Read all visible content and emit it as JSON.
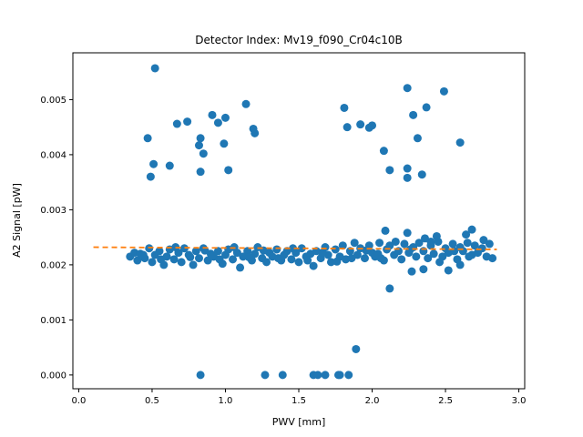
{
  "chart_data": {
    "type": "scatter",
    "title": "Detector Index: Mv19_f090_Cr04c10B",
    "xlabel": "PWV [mm]",
    "ylabel": "A2 Signal [pW]",
    "xlim": [
      -0.04,
      3.04
    ],
    "ylim": [
      -0.00025,
      0.00585
    ],
    "xticks": [
      0.0,
      0.5,
      1.0,
      1.5,
      2.0,
      2.5,
      3.0
    ],
    "xtick_labels": [
      "0.0",
      "0.5",
      "1.0",
      "1.5",
      "2.0",
      "2.5",
      "3.0"
    ],
    "yticks": [
      0.0,
      0.001,
      0.002,
      0.003,
      0.004,
      0.005
    ],
    "ytick_labels": [
      "0.000",
      "0.001",
      "0.002",
      "0.003",
      "0.004",
      "0.005"
    ],
    "colors": {
      "scatter": "#1f77b4",
      "fit": "#ff7f0e"
    },
    "series": [
      {
        "name": "measurements",
        "kind": "points",
        "points": [
          [
            0.35,
            0.00215
          ],
          [
            0.38,
            0.00222
          ],
          [
            0.4,
            0.00208
          ],
          [
            0.42,
            0.0022
          ],
          [
            0.45,
            0.00212
          ],
          [
            0.48,
            0.0023
          ],
          [
            0.5,
            0.00205
          ],
          [
            0.52,
            0.00218
          ],
          [
            0.55,
            0.00225
          ],
          [
            0.58,
            0.002
          ],
          [
            0.6,
            0.00215
          ],
          [
            0.62,
            0.00228
          ],
          [
            0.65,
            0.0021
          ],
          [
            0.68,
            0.00222
          ],
          [
            0.7,
            0.00205
          ],
          [
            0.72,
            0.0023
          ],
          [
            0.75,
            0.00218
          ],
          [
            0.78,
            0.002
          ],
          [
            0.8,
            0.00225
          ],
          [
            0.82,
            0.00212
          ],
          [
            0.85,
            0.0023
          ],
          [
            0.88,
            0.00208
          ],
          [
            0.9,
            0.0022
          ],
          [
            0.92,
            0.00215
          ],
          [
            0.95,
            0.00225
          ],
          [
            0.98,
            0.00202
          ],
          [
            1.0,
            0.00218
          ],
          [
            1.02,
            0.00228
          ],
          [
            1.05,
            0.0021
          ],
          [
            1.08,
            0.00222
          ],
          [
            1.1,
            0.00195
          ],
          [
            1.12,
            0.00215
          ],
          [
            1.15,
            0.00225
          ],
          [
            1.18,
            0.00208
          ],
          [
            1.2,
            0.0022
          ],
          [
            1.22,
            0.00232
          ],
          [
            1.25,
            0.00212
          ],
          [
            1.28,
            0.00205
          ],
          [
            1.3,
            0.00222
          ],
          [
            1.32,
            0.00215
          ],
          [
            1.35,
            0.00228
          ],
          [
            1.38,
            0.00208
          ],
          [
            1.4,
            0.00218
          ],
          [
            1.42,
            0.00225
          ],
          [
            1.45,
            0.0021
          ],
          [
            1.48,
            0.00222
          ],
          [
            1.5,
            0.00205
          ],
          [
            1.52,
            0.0023
          ],
          [
            1.55,
            0.00215
          ],
          [
            1.58,
            0.0022
          ],
          [
            1.6,
            0.00198
          ],
          [
            1.62,
            0.00225
          ],
          [
            1.65,
            0.00212
          ],
          [
            1.68,
            0.00232
          ],
          [
            1.7,
            0.00218
          ],
          [
            1.72,
            0.00205
          ],
          [
            1.75,
            0.00228
          ],
          [
            1.78,
            0.00215
          ],
          [
            1.8,
            0.00235
          ],
          [
            1.82,
            0.0021
          ],
          [
            1.85,
            0.00225
          ],
          [
            1.88,
            0.0024
          ],
          [
            1.9,
            0.00218
          ],
          [
            1.92,
            0.0023
          ],
          [
            1.95,
            0.00212
          ],
          [
            1.98,
            0.00235
          ],
          [
            2.0,
            0.00222
          ],
          [
            2.02,
            0.00215
          ],
          [
            2.05,
            0.0024
          ],
          [
            2.08,
            0.00208
          ],
          [
            2.1,
            0.00228
          ],
          [
            2.12,
            0.00235
          ],
          [
            2.15,
            0.00218
          ],
          [
            2.18,
            0.00225
          ],
          [
            2.2,
            0.0021
          ],
          [
            2.22,
            0.00238
          ],
          [
            2.25,
            0.00222
          ],
          [
            2.28,
            0.00232
          ],
          [
            2.3,
            0.00215
          ],
          [
            2.32,
            0.0024
          ],
          [
            2.35,
            0.00225
          ],
          [
            2.38,
            0.00212
          ],
          [
            2.4,
            0.00235
          ],
          [
            2.42,
            0.0022
          ],
          [
            2.45,
            0.00242
          ],
          [
            2.48,
            0.00215
          ],
          [
            2.5,
            0.0023
          ],
          [
            2.52,
            0.00222
          ],
          [
            2.55,
            0.00238
          ],
          [
            2.58,
            0.0021
          ],
          [
            2.6,
            0.00232
          ],
          [
            2.62,
            0.00225
          ],
          [
            2.65,
            0.0024
          ],
          [
            2.68,
            0.00218
          ],
          [
            2.7,
            0.00235
          ],
          [
            2.72,
            0.00222
          ],
          [
            2.75,
            0.0023
          ],
          [
            2.78,
            0.00215
          ],
          [
            2.8,
            0.00238
          ],
          [
            2.82,
            0.00212
          ],
          [
            0.44,
            0.00218
          ],
          [
            0.56,
            0.0021
          ],
          [
            0.66,
            0.00232
          ],
          [
            0.76,
            0.00214
          ],
          [
            0.86,
            0.00226
          ],
          [
            0.96,
            0.0021
          ],
          [
            1.06,
            0.00232
          ],
          [
            1.16,
            0.00214
          ],
          [
            1.26,
            0.00226
          ],
          [
            1.36,
            0.00212
          ],
          [
            1.46,
            0.0023
          ],
          [
            1.56,
            0.00208
          ],
          [
            1.66,
            0.00222
          ],
          [
            1.76,
            0.00206
          ],
          [
            1.86,
            0.00212
          ],
          [
            1.96,
            0.00226
          ],
          [
            2.06,
            0.00212
          ],
          [
            2.16,
            0.00242
          ],
          [
            2.26,
            0.00228
          ],
          [
            2.36,
            0.00248
          ],
          [
            2.46,
            0.00205
          ],
          [
            2.56,
            0.00225
          ],
          [
            2.66,
            0.00215
          ],
          [
            2.76,
            0.00245
          ],
          [
            2.04,
            0.0022
          ],
          [
            2.24,
            0.00258
          ],
          [
            2.44,
            0.00252
          ],
          [
            2.64,
            0.00255
          ],
          [
            2.09,
            0.00262
          ],
          [
            2.4,
            0.00242
          ],
          [
            2.6,
            0.002
          ],
          [
            2.35,
            0.00192
          ],
          [
            2.52,
            0.0019
          ],
          [
            2.27,
            0.00188
          ],
          [
            2.68,
            0.00264
          ],
          [
            0.47,
            0.0043
          ],
          [
            0.49,
            0.0036
          ],
          [
            0.51,
            0.00383
          ],
          [
            0.52,
            0.00557
          ],
          [
            0.62,
            0.0038
          ],
          [
            0.67,
            0.00456
          ],
          [
            0.74,
            0.0046
          ],
          [
            0.82,
            0.00417
          ],
          [
            0.83,
            0.0043
          ],
          [
            0.83,
            0.00369
          ],
          [
            0.85,
            0.00402
          ],
          [
            0.91,
            0.00472
          ],
          [
            0.95,
            0.00458
          ],
          [
            0.99,
            0.0042
          ],
          [
            1.0,
            0.00467
          ],
          [
            1.02,
            0.00372
          ],
          [
            1.14,
            0.00492
          ],
          [
            1.19,
            0.00447
          ],
          [
            1.2,
            0.00439
          ],
          [
            1.81,
            0.00485
          ],
          [
            1.83,
            0.0045
          ],
          [
            1.92,
            0.00455
          ],
          [
            1.98,
            0.00449
          ],
          [
            2.0,
            0.00453
          ],
          [
            2.08,
            0.00407
          ],
          [
            2.12,
            0.00372
          ],
          [
            2.24,
            0.00521
          ],
          [
            2.24,
            0.00375
          ],
          [
            2.24,
            0.00358
          ],
          [
            2.28,
            0.00472
          ],
          [
            2.31,
            0.0043
          ],
          [
            2.34,
            0.00364
          ],
          [
            2.37,
            0.00486
          ],
          [
            2.49,
            0.00515
          ],
          [
            2.6,
            0.00422
          ],
          [
            2.12,
            0.00157
          ],
          [
            1.89,
            0.00047
          ],
          [
            0.83,
            0.0
          ],
          [
            1.27,
            0.0
          ],
          [
            1.39,
            0.0
          ],
          [
            1.6,
            0.0
          ],
          [
            1.63,
            0.0
          ],
          [
            1.68,
            0.0
          ],
          [
            1.77,
            0.0
          ],
          [
            1.78,
            0.0
          ],
          [
            1.84,
            0.0
          ]
        ]
      },
      {
        "name": "fit",
        "kind": "dashed-line",
        "x": [
          0.1,
          2.85
        ],
        "y": [
          0.00232,
          0.00228
        ]
      }
    ]
  }
}
